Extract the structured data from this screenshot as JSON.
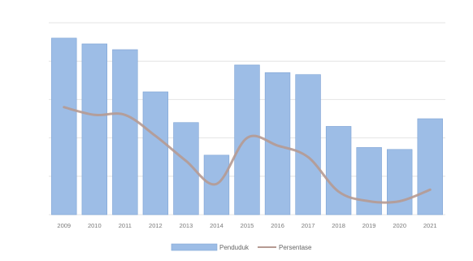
{
  "chart_data": {
    "type": "bar",
    "categories": [
      "2009",
      "2010",
      "2011",
      "2012",
      "2013",
      "2014",
      "2015",
      "2016",
      "2017",
      "2018",
      "2019",
      "2020",
      "2021"
    ],
    "series": [
      {
        "name": "Penduduk",
        "type": "bar",
        "axis": "left",
        "values": [
          null,
          null,
          null,
          null,
          null,
          null,
          null,
          null,
          null,
          null,
          null,
          null,
          null
        ],
        "value_labels": [
          "",
          "",
          "",
          "",
          "",
          "",
          "",
          "",
          "",
          "",
          "",
          "",
          ""
        ],
        "inner_labels": [
          "",
          "",
          "",
          "",
          "",
          "",
          "",
          "",
          "",
          "",
          "",
          "",
          ""
        ],
        "level": [
          0.92,
          0.89,
          0.86,
          0.64,
          0.48,
          0.31,
          0.78,
          0.74,
          0.73,
          0.46,
          0.35,
          0.34,
          0.5
        ]
      },
      {
        "name": "Persentase",
        "type": "line",
        "axis": "right",
        "values": [
          null,
          null,
          null,
          null,
          null,
          null,
          null,
          null,
          null,
          null,
          null,
          null,
          null
        ],
        "level": [
          0.56,
          0.52,
          0.52,
          0.41,
          0.28,
          0.16,
          0.4,
          0.36,
          0.3,
          0.12,
          0.07,
          0.07,
          0.13
        ]
      }
    ],
    "left_axis": {
      "ticks": [],
      "range": [
        null,
        null
      ]
    },
    "right_axis": {
      "ticks": [],
      "range": [
        null,
        null
      ]
    },
    "grid": true,
    "legend": "bottom",
    "colors": {
      "bar": "#9dbde6",
      "bar_edge": "#7ea3d4",
      "line": "#b69a92"
    }
  },
  "watermark": ""
}
